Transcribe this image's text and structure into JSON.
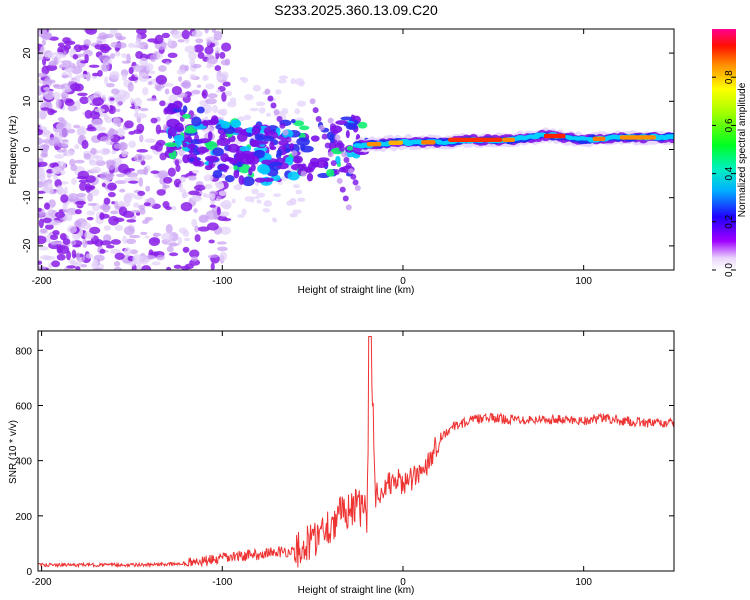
{
  "title": "S233.2025.360.13.09.C20",
  "chart_data": [
    {
      "type": "heatmap",
      "name": "spectrogram",
      "xlabel": "Height of straight line (km)",
      "ylabel": "Frequency (Hz)",
      "xlim": [
        -202,
        150
      ],
      "ylim": [
        -25,
        25
      ],
      "xticks": [
        -200,
        -100,
        0,
        100
      ],
      "yticks": [
        -20,
        -10,
        0,
        10,
        20
      ],
      "colorbar": {
        "label": "Normalized spectral amplitude",
        "range": [
          0,
          1
        ],
        "ticks": [
          "0.0",
          "0.2",
          "0.4",
          "0.6",
          "0.8"
        ]
      },
      "ridge": [
        {
          "x": -200,
          "f": 3
        },
        {
          "x": -160,
          "f": 4
        },
        {
          "x": -120,
          "f": 4
        },
        {
          "x": -100,
          "f": 0
        },
        {
          "x": -80,
          "f": -1
        },
        {
          "x": -60,
          "f": 0
        },
        {
          "x": -40,
          "f": 0
        },
        {
          "x": -20,
          "f": 1
        },
        {
          "x": 0,
          "f": 1.5
        },
        {
          "x": 20,
          "f": 1.5
        },
        {
          "x": 40,
          "f": 2
        },
        {
          "x": 60,
          "f": 2
        },
        {
          "x": 80,
          "f": 3
        },
        {
          "x": 100,
          "f": 2
        },
        {
          "x": 120,
          "f": 2.5
        },
        {
          "x": 150,
          "f": 2.5
        }
      ]
    },
    {
      "type": "line",
      "name": "snr",
      "xlabel": "Height of straight line (km)",
      "ylabel": "SNR (10 * v/v)",
      "xlim": [
        -202,
        150
      ],
      "ylim": [
        0,
        870
      ],
      "xticks": [
        -200,
        -100,
        0,
        100
      ],
      "yticks": [
        0,
        200,
        400,
        600,
        800
      ],
      "color": "#ee3333",
      "series": [
        {
          "name": "SNR",
          "x": [
            -202,
            -180,
            -160,
            -140,
            -120,
            -110,
            -100,
            -90,
            -80,
            -70,
            -60,
            -55,
            -50,
            -45,
            -40,
            -35,
            -30,
            -25,
            -20,
            -18,
            -15,
            -10,
            -5,
            0,
            5,
            10,
            15,
            20,
            25,
            30,
            40,
            50,
            60,
            80,
            100,
            110,
            120,
            130,
            140,
            150
          ],
          "values": [
            22,
            22,
            22,
            22,
            28,
            35,
            45,
            55,
            60,
            70,
            70,
            90,
            110,
            150,
            170,
            200,
            230,
            230,
            200,
            850,
            280,
            300,
            330,
            320,
            330,
            360,
            410,
            480,
            510,
            530,
            550,
            555,
            550,
            550,
            545,
            555,
            545,
            540,
            535,
            535
          ]
        }
      ]
    }
  ]
}
